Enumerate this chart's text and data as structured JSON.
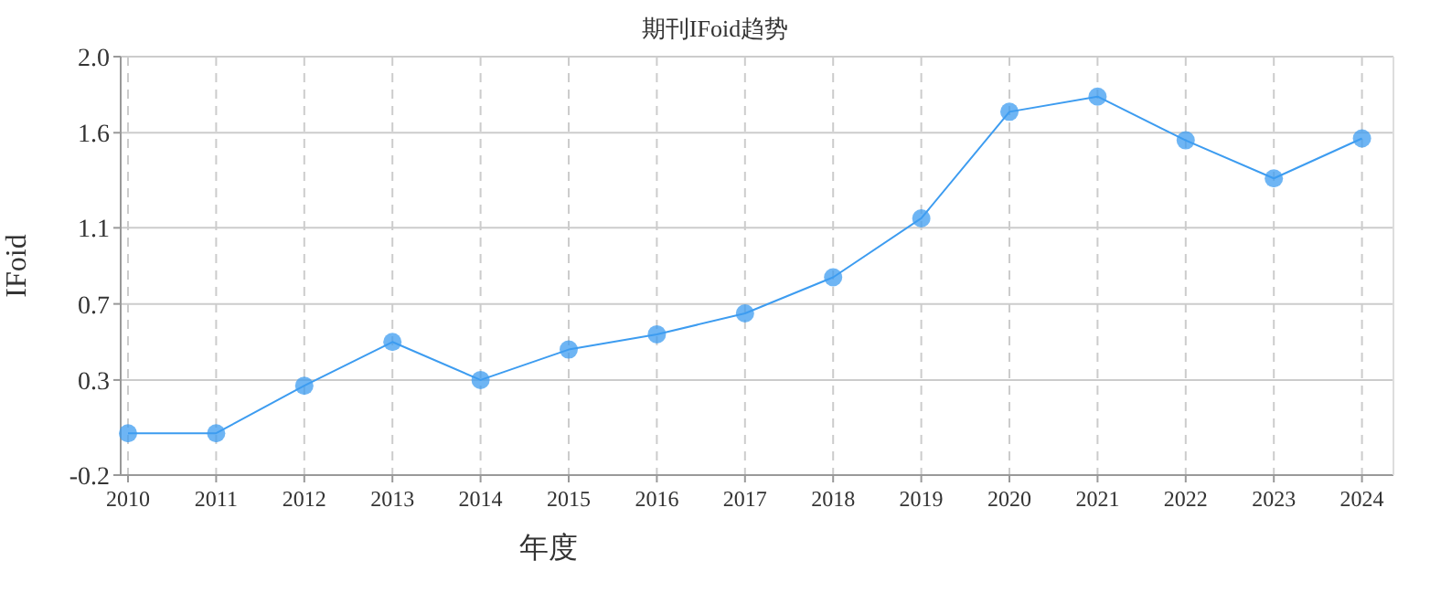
{
  "chart_data": {
    "type": "line",
    "title": "期刊IFoid趋势",
    "xlabel": "年度",
    "ylabel": "IFoid",
    "categories": [
      "2010",
      "2011",
      "2012",
      "2013",
      "2014",
      "2015",
      "2016",
      "2017",
      "2018",
      "2019",
      "2020",
      "2021",
      "2022",
      "2023",
      "2024"
    ],
    "series": [
      {
        "color": "#3d9cf0",
        "values": [
          0.02,
          0.02,
          0.27,
          0.5,
          0.3,
          0.46,
          0.54,
          0.65,
          0.84,
          1.15,
          1.71,
          1.79,
          1.56,
          1.36,
          1.57
        ]
      }
    ],
    "ylim": [
      -0.2,
      2.0
    ],
    "yticks": [
      -0.2,
      0.3,
      0.7,
      1.1,
      1.6,
      {
        "value": 2.0,
        "label": "2.0"
      }
    ],
    "grid": true,
    "marker": "circle"
  }
}
